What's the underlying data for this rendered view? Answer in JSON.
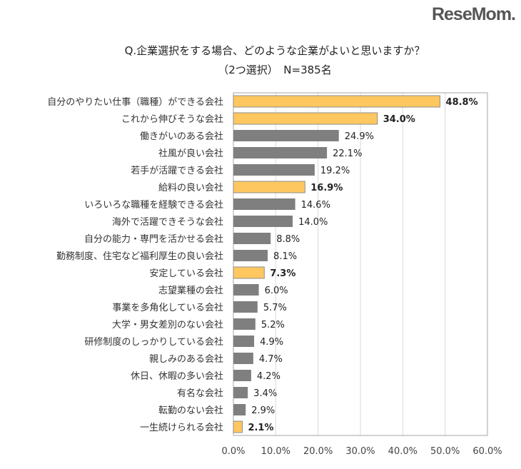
{
  "chart_data": {
    "type": "bar",
    "orientation": "horizontal",
    "title": "Q.企業選択をする場合、どのような企業がよいと思いますか？",
    "subtitle": "（2つ選択）　N=385名",
    "categories": [
      "自分のやりたい仕事（職種）ができる会社",
      "これから伸びそうな会社",
      "働きがいのある会社",
      "社風が良い会社",
      "若手が活躍できる会社",
      "給料の良い会社",
      "いろいろな職種を経験できる会社",
      "海外で活躍できそうな会社",
      "自分の能力・専門を活かせる会社",
      "勤務制度、住宅など福利厚生の良い会社",
      "安定している会社",
      "志望業種の会社",
      "事業を多角化している会社",
      "大学・男女差別のない会社",
      "研修制度のしっかりしている会社",
      "親しみのある会社",
      "休日、休暇の多い会社",
      "有名な会社",
      "転勤のない会社",
      "一生続けられる会社"
    ],
    "values": [
      48.8,
      34.0,
      24.9,
      22.1,
      19.2,
      16.9,
      14.6,
      14.0,
      8.8,
      8.1,
      7.3,
      6.0,
      5.7,
      5.2,
      4.9,
      4.7,
      4.2,
      3.4,
      2.9,
      2.1
    ],
    "data_labels": [
      "48.8%",
      "34.0%",
      "24.9%",
      "22.1%",
      "19.2%",
      "16.9%",
      "14.6%",
      "14.0%",
      "8.8%",
      "8.1%",
      "7.3%",
      "6.0%",
      "5.7%",
      "5.2%",
      "4.9%",
      "4.7%",
      "4.2%",
      "3.4%",
      "2.9%",
      "2.1%"
    ],
    "highlighted": [
      true,
      true,
      false,
      false,
      false,
      true,
      false,
      false,
      false,
      false,
      true,
      false,
      false,
      false,
      false,
      false,
      false,
      false,
      false,
      true
    ],
    "xlim": [
      0,
      60
    ],
    "x_ticks": [
      "0.0%",
      "10.0%",
      "20.0%",
      "30.0%",
      "40.0%",
      "50.0%",
      "60.0%"
    ],
    "grid": true,
    "colors": {
      "highlight": "#FFC75F",
      "normal": "#7F7F7F",
      "grid": "#D9D9D9"
    }
  },
  "watermark": "ReseMom"
}
